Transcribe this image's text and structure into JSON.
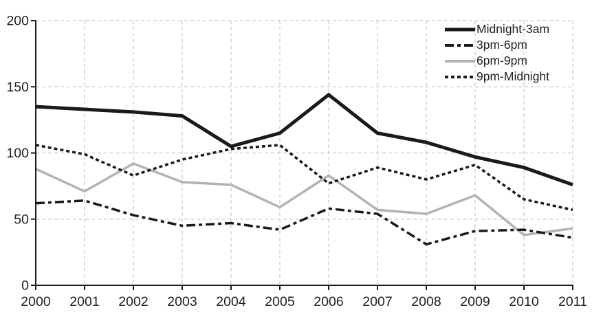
{
  "chart_data": {
    "type": "line",
    "title": "",
    "xlabel": "",
    "ylabel": "",
    "categories": [
      "2000",
      "2001",
      "2002",
      "2003",
      "2004",
      "2005",
      "2006",
      "2007",
      "2008",
      "2009",
      "2010",
      "2011"
    ],
    "yticks": [
      0,
      50,
      100,
      150,
      200
    ],
    "ylim": [
      0,
      200
    ],
    "grid": "dashed",
    "legend_position": "top-right",
    "series": [
      {
        "name": "Midnight-3am",
        "color": "#1a1a1a",
        "width": 5,
        "dash": "",
        "values": [
          135,
          133,
          131,
          128,
          105,
          115,
          144,
          115,
          108,
          97,
          89,
          76
        ]
      },
      {
        "name": "3pm-6pm",
        "color": "#1a1a1a",
        "width": 3.5,
        "dash": "13 5 5 5",
        "values": [
          62,
          64,
          53,
          45,
          47,
          42,
          58,
          54,
          31,
          41,
          42,
          36
        ]
      },
      {
        "name": "6pm-9pm",
        "color": "#b3b3b3",
        "width": 3.5,
        "dash": "",
        "values": [
          88,
          71,
          92,
          78,
          76,
          59,
          83,
          57,
          54,
          68,
          38,
          43
        ]
      },
      {
        "name": "9pm-Midnight",
        "color": "#1a1a1a",
        "width": 3.5,
        "dash": "5 4",
        "values": [
          106,
          99,
          83,
          95,
          103,
          106,
          77,
          89,
          80,
          91,
          65,
          57
        ]
      }
    ],
    "colors": {
      "axis": "#1a1a1a",
      "grid": "#c9c9c9",
      "text": "#1f1f1f",
      "background": "#ffffff"
    }
  }
}
